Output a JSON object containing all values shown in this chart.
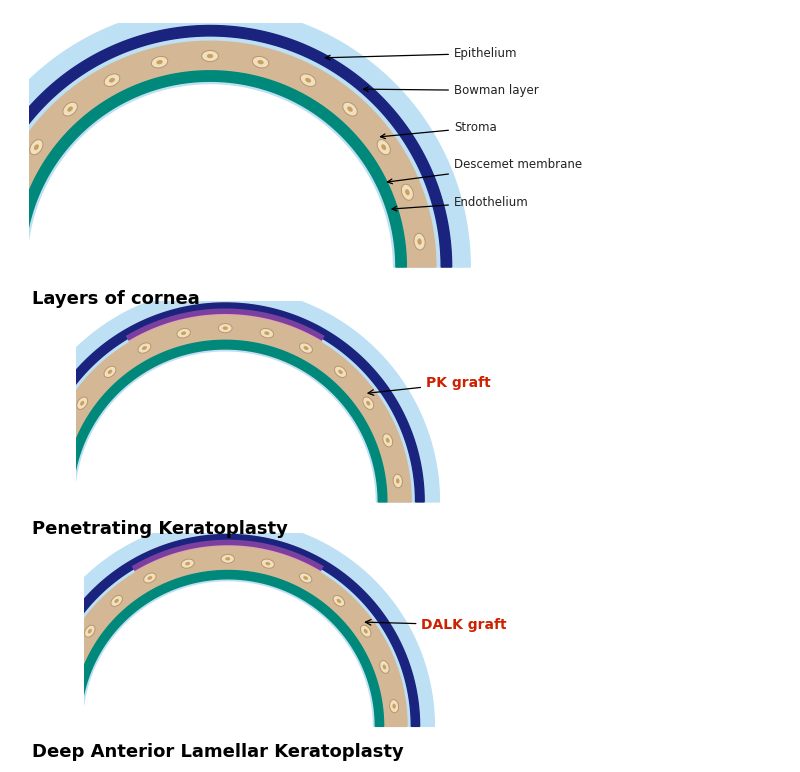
{
  "bg_color": "#ffffff",
  "light_blue": "#bde0f5",
  "dark_blue": "#1a237e",
  "teal": "#00897b",
  "stroma_color": "#d4b896",
  "graft_pink": "#e8a0a0",
  "graft_purple": "#7b3fa0",
  "cell_face": "#f0e0c0",
  "cell_edge": "#b8956a",
  "cell_inner": "#c8a060",
  "annotation_color": "#222222",
  "pk_dalk_label_color": "#cc2200",
  "title1": "Layers of cornea",
  "title2": "Penetrating Keratoplasty",
  "title3": "Deep Anterior Lamellar Keratoplasty",
  "labels": [
    "Epithelium",
    "Bowman layer",
    "Stroma",
    "Descemet membrane",
    "Endothelium"
  ],
  "pk_label": "PK graft",
  "dalk_label": "DALK graft"
}
